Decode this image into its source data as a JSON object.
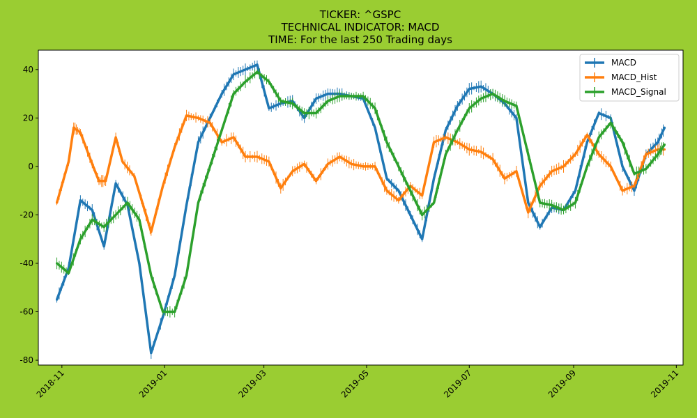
{
  "chart_data": {
    "type": "line",
    "title_lines": [
      "TICKER:  ^GSPC",
      "TECHNICAL INDICATOR:  MACD",
      "TIME: For the last 250 Trading days"
    ],
    "xlabel": "",
    "ylabel": "",
    "x_range": [
      "2018-10-18",
      "2019-11-05"
    ],
    "ylim": [
      -82,
      48
    ],
    "x_ticks": [
      "2018-11",
      "2019-01",
      "2019-03",
      "2019-05",
      "2019-07",
      "2019-09",
      "2019-11"
    ],
    "y_ticks": [
      40,
      20,
      0,
      -20,
      -40,
      -60,
      -80
    ],
    "grid": false,
    "legend_position": "top-right",
    "background": "#9acd32",
    "plot_background": "#ffffff",
    "series": [
      {
        "name": "MACD",
        "color": "#1f77b4",
        "points": [
          [
            "2018-10-29",
            -55
          ],
          [
            "2018-11-05",
            -42
          ],
          [
            "2018-11-12",
            -14
          ],
          [
            "2018-11-19",
            -18
          ],
          [
            "2018-11-26",
            -33
          ],
          [
            "2018-12-03",
            -7
          ],
          [
            "2018-12-10",
            -16
          ],
          [
            "2018-12-17",
            -40
          ],
          [
            "2018-12-24",
            -77
          ],
          [
            "2018-12-31",
            -62
          ],
          [
            "2019-01-07",
            -45
          ],
          [
            "2019-01-14",
            -16
          ],
          [
            "2019-01-21",
            10
          ],
          [
            "2019-01-28",
            20
          ],
          [
            "2019-02-04",
            30
          ],
          [
            "2019-02-11",
            38
          ],
          [
            "2019-02-18",
            40
          ],
          [
            "2019-02-25",
            42
          ],
          [
            "2019-03-04",
            24
          ],
          [
            "2019-03-11",
            26
          ],
          [
            "2019-03-18",
            27
          ],
          [
            "2019-03-25",
            20
          ],
          [
            "2019-04-01",
            28
          ],
          [
            "2019-04-08",
            30
          ],
          [
            "2019-04-15",
            30
          ],
          [
            "2019-04-22",
            29
          ],
          [
            "2019-04-29",
            28
          ],
          [
            "2019-05-06",
            16
          ],
          [
            "2019-05-13",
            -5
          ],
          [
            "2019-05-20",
            -10
          ],
          [
            "2019-05-27",
            -20
          ],
          [
            "2019-06-03",
            -30
          ],
          [
            "2019-06-10",
            -5
          ],
          [
            "2019-06-17",
            15
          ],
          [
            "2019-06-24",
            25
          ],
          [
            "2019-07-01",
            32
          ],
          [
            "2019-07-08",
            33
          ],
          [
            "2019-07-15",
            30
          ],
          [
            "2019-07-22",
            26
          ],
          [
            "2019-07-29",
            20
          ],
          [
            "2019-08-05",
            -15
          ],
          [
            "2019-08-12",
            -25
          ],
          [
            "2019-08-19",
            -17
          ],
          [
            "2019-08-26",
            -18
          ],
          [
            "2019-09-02",
            -10
          ],
          [
            "2019-09-09",
            10
          ],
          [
            "2019-09-16",
            22
          ],
          [
            "2019-09-23",
            20
          ],
          [
            "2019-09-30",
            0
          ],
          [
            "2019-10-07",
            -10
          ],
          [
            "2019-10-14",
            5
          ],
          [
            "2019-10-21",
            10
          ],
          [
            "2019-10-25",
            16
          ]
        ]
      },
      {
        "name": "MACD_Hist",
        "color": "#ff7f0e",
        "points": [
          [
            "2018-10-29",
            -15
          ],
          [
            "2018-11-05",
            2
          ],
          [
            "2018-11-08",
            16
          ],
          [
            "2018-11-12",
            14
          ],
          [
            "2018-11-19",
            1
          ],
          [
            "2018-11-23",
            -6
          ],
          [
            "2018-11-27",
            -6
          ],
          [
            "2018-12-03",
            12
          ],
          [
            "2018-12-07",
            2
          ],
          [
            "2018-12-14",
            -4
          ],
          [
            "2018-12-21",
            -20
          ],
          [
            "2018-12-24",
            -27
          ],
          [
            "2018-12-31",
            -8
          ],
          [
            "2019-01-07",
            8
          ],
          [
            "2019-01-14",
            21
          ],
          [
            "2019-01-21",
            20
          ],
          [
            "2019-01-28",
            18
          ],
          [
            "2019-02-04",
            10
          ],
          [
            "2019-02-11",
            12
          ],
          [
            "2019-02-18",
            4
          ],
          [
            "2019-02-25",
            4
          ],
          [
            "2019-03-04",
            2
          ],
          [
            "2019-03-11",
            -9
          ],
          [
            "2019-03-18",
            -2
          ],
          [
            "2019-03-25",
            1
          ],
          [
            "2019-04-01",
            -6
          ],
          [
            "2019-04-08",
            1
          ],
          [
            "2019-04-15",
            4
          ],
          [
            "2019-04-22",
            1
          ],
          [
            "2019-04-29",
            0
          ],
          [
            "2019-05-06",
            0
          ],
          [
            "2019-05-13",
            -10
          ],
          [
            "2019-05-20",
            -14
          ],
          [
            "2019-05-27",
            -8
          ],
          [
            "2019-06-03",
            -12
          ],
          [
            "2019-06-10",
            10
          ],
          [
            "2019-06-17",
            12
          ],
          [
            "2019-06-24",
            10
          ],
          [
            "2019-07-01",
            7
          ],
          [
            "2019-07-08",
            6
          ],
          [
            "2019-07-15",
            3
          ],
          [
            "2019-07-22",
            -5
          ],
          [
            "2019-07-29",
            -2
          ],
          [
            "2019-08-05",
            -19
          ],
          [
            "2019-08-12",
            -8
          ],
          [
            "2019-08-19",
            -2
          ],
          [
            "2019-08-26",
            0
          ],
          [
            "2019-09-02",
            5
          ],
          [
            "2019-09-09",
            13
          ],
          [
            "2019-09-16",
            5
          ],
          [
            "2019-09-23",
            0
          ],
          [
            "2019-09-30",
            -10
          ],
          [
            "2019-10-07",
            -8
          ],
          [
            "2019-10-14",
            5
          ],
          [
            "2019-10-21",
            7
          ],
          [
            "2019-10-25",
            7
          ]
        ]
      },
      {
        "name": "MACD_Signal",
        "color": "#2ca02c",
        "points": [
          [
            "2018-10-29",
            -40
          ],
          [
            "2018-11-05",
            -44
          ],
          [
            "2018-11-12",
            -30
          ],
          [
            "2018-11-19",
            -22
          ],
          [
            "2018-11-26",
            -25
          ],
          [
            "2018-12-03",
            -20
          ],
          [
            "2018-12-10",
            -15
          ],
          [
            "2018-12-17",
            -22
          ],
          [
            "2018-12-24",
            -45
          ],
          [
            "2018-12-31",
            -60
          ],
          [
            "2019-01-07",
            -60
          ],
          [
            "2019-01-14",
            -45
          ],
          [
            "2019-01-21",
            -15
          ],
          [
            "2019-01-28",
            0
          ],
          [
            "2019-02-04",
            15
          ],
          [
            "2019-02-11",
            30
          ],
          [
            "2019-02-18",
            35
          ],
          [
            "2019-02-25",
            39
          ],
          [
            "2019-03-04",
            35
          ],
          [
            "2019-03-11",
            27
          ],
          [
            "2019-03-18",
            26
          ],
          [
            "2019-03-25",
            22
          ],
          [
            "2019-04-01",
            22
          ],
          [
            "2019-04-08",
            27
          ],
          [
            "2019-04-15",
            29
          ],
          [
            "2019-04-22",
            29
          ],
          [
            "2019-04-29",
            29
          ],
          [
            "2019-05-06",
            24
          ],
          [
            "2019-05-13",
            10
          ],
          [
            "2019-05-20",
            0
          ],
          [
            "2019-05-27",
            -10
          ],
          [
            "2019-06-03",
            -20
          ],
          [
            "2019-06-10",
            -15
          ],
          [
            "2019-06-17",
            5
          ],
          [
            "2019-06-24",
            15
          ],
          [
            "2019-07-01",
            24
          ],
          [
            "2019-07-08",
            28
          ],
          [
            "2019-07-15",
            30
          ],
          [
            "2019-07-22",
            27
          ],
          [
            "2019-07-29",
            25
          ],
          [
            "2019-08-05",
            5
          ],
          [
            "2019-08-12",
            -15
          ],
          [
            "2019-08-19",
            -16
          ],
          [
            "2019-08-26",
            -18
          ],
          [
            "2019-09-02",
            -15
          ],
          [
            "2019-09-09",
            0
          ],
          [
            "2019-09-16",
            12
          ],
          [
            "2019-09-23",
            18
          ],
          [
            "2019-09-30",
            10
          ],
          [
            "2019-10-07",
            -3
          ],
          [
            "2019-10-14",
            -1
          ],
          [
            "2019-10-21",
            5
          ],
          [
            "2019-10-25",
            9
          ]
        ]
      }
    ]
  }
}
